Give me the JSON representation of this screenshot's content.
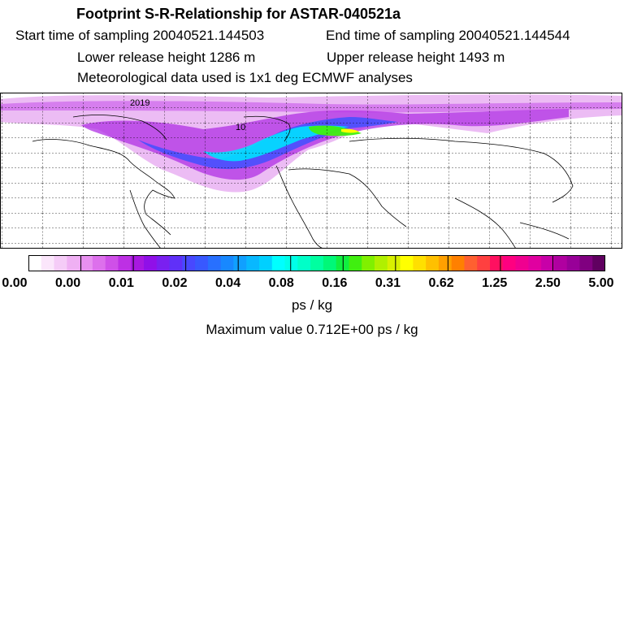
{
  "header": {
    "title": "Footprint S-R-Relationship for ASTAR-040521a",
    "start_time": "Start time of sampling 20040521.144503",
    "end_time": "End time of sampling 20040521.144544",
    "lower_height": "Lower release height 1286 m",
    "upper_height": "Upper release height 1493 m",
    "met_data": "Meteorological data used is 1x1 deg ECMWF analyses"
  },
  "colorbar": {
    "tick_labels": [
      "0.00",
      "0.00",
      "0.01",
      "0.02",
      "0.04",
      "0.08",
      "0.16",
      "0.31",
      "0.62",
      "1.25",
      "2.50",
      "5.00"
    ],
    "colors": [
      "#ffffff",
      "#fbe6fb",
      "#f5ccf7",
      "#efb0f3",
      "#e890f0",
      "#dd70ec",
      "#cf50e8",
      "#bd30e4",
      "#a818e0",
      "#9010e8",
      "#7a20f0",
      "#6030f8",
      "#4848ff",
      "#3858ff",
      "#2870ff",
      "#1888ff",
      "#10a0ff",
      "#08b8ff",
      "#00d0ff",
      "#00ffff",
      "#00ffe8",
      "#00ffc8",
      "#00ffa0",
      "#00f878",
      "#10ef40",
      "#40ef10",
      "#80f000",
      "#b0f000",
      "#d8f000",
      "#ffff00",
      "#ffe000",
      "#ffc000",
      "#ffa000",
      "#ff8000",
      "#ff6030",
      "#ff4040",
      "#ff1060",
      "#ff0080",
      "#f00090",
      "#e000a0",
      "#c800a8",
      "#b000a0",
      "#980098",
      "#800080",
      "#600060"
    ]
  },
  "units": "ps / kg",
  "max_value": "Maximum value  0.712E+00 ps / kg",
  "map_labels": {
    "date_label": "2019",
    "contour_label": "10"
  }
}
